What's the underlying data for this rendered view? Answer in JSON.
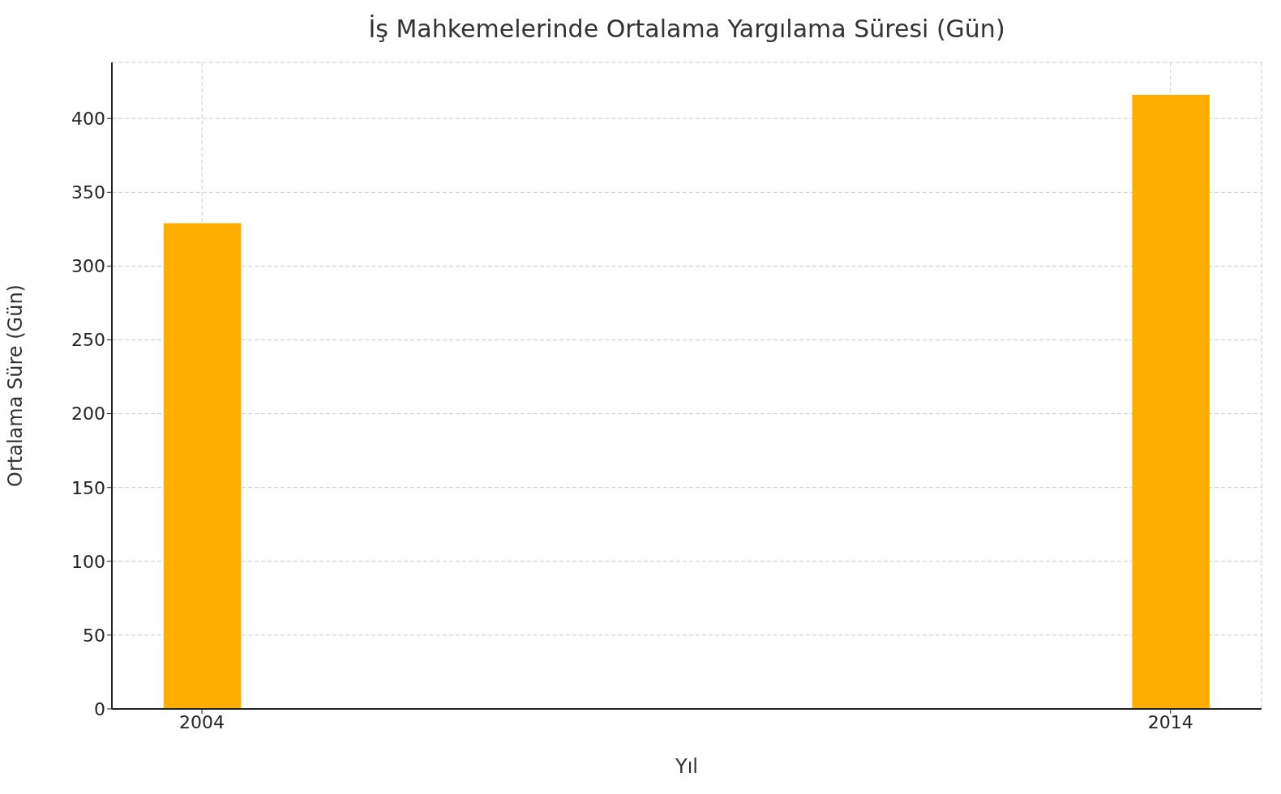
{
  "chart_data": {
    "type": "bar",
    "title": "İş Mahkemelerinde Ortalama Yargılama Süresi (Gün)",
    "xlabel": "Yıl",
    "ylabel": "Ortalama Süre (Gün)",
    "x": [
      2004,
      2014
    ],
    "values": [
      329,
      416
    ],
    "color": "#ffae00",
    "xlim": [
      2003.07,
      2014.94
    ],
    "xticks": [
      2004,
      2014
    ],
    "ylim": [
      0,
      438
    ],
    "yticks": [
      0,
      50,
      100,
      150,
      200,
      250,
      300,
      350,
      400
    ],
    "grid": true
  }
}
